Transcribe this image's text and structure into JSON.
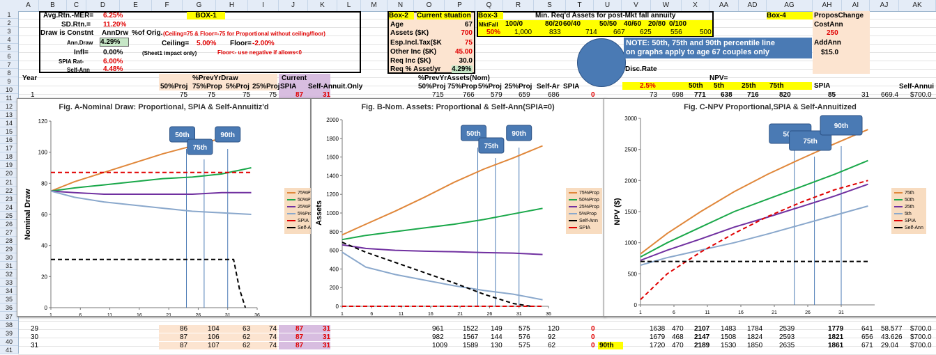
{
  "columns": [
    "A",
    "B",
    "C",
    "D",
    "E",
    "F",
    "G",
    "H",
    "I",
    "J",
    "K",
    "L",
    "M",
    "N",
    "O",
    "P",
    "Q",
    "R",
    "S",
    "T",
    "U",
    "V",
    "W",
    "X",
    "AA",
    "AD",
    "AG",
    "AH",
    "AI",
    "AJ",
    "AK"
  ],
  "rows": [
    "1",
    "2",
    "3",
    "4",
    "5",
    "6",
    "7",
    "8",
    "9",
    "10",
    "11",
    "12",
    "13",
    "14",
    "15",
    "16",
    "17",
    "18",
    "19",
    "20",
    "21",
    "22",
    "23",
    "24",
    "25",
    "26",
    "27",
    "28",
    "29",
    "30",
    "31",
    "32",
    "33",
    "34",
    "35",
    "36",
    "37",
    "38",
    "39",
    "40",
    "41"
  ],
  "box1": {
    "avg_label": "Avg.Rtn.-MER=",
    "avg_val": "6.25%",
    "box_label": "BOX-1",
    "sd_label": "SD.Rtn.=",
    "sd_val": "11.20%",
    "draw_label": "Draw is Constnt",
    "draw_mode": "AnnDrw",
    "pct_label": "%of Orig.",
    "ceiling_note": "(Ceiling=75 & Floor=-75 for Proportional without ceiling/floor)",
    "anndraw_label": "Ann.Draw",
    "anndraw_val": "4.29%",
    "ceiling_label": "Ceiling=",
    "ceiling_val": "5.00%",
    "floor_label": "Floor=",
    "floor_val": "-2.00%",
    "infl_label": "Infl=",
    "infl_val": "0.00%",
    "sheet_note": "(Sheet1 impact only)",
    "floor_note": "Floor<- use negative if allows<0",
    "spia_label": "SPIA Rat-",
    "spia_val": "6.00%",
    "self_label": "Self-Ann",
    "self_val": "4.48%"
  },
  "box2": {
    "title": "Box-2",
    "sub": "Current stuation",
    "age_label": "Age",
    "age_val": "67",
    "assets_label": "Assets ($K)",
    "assets_val": "700",
    "exp_label": "Esp.Incl.Tax($K",
    "exp_val": "75",
    "other_label": "Other Inc ($K)",
    "other_val": "45.00",
    "req_label": "Req Inc ($K)",
    "req_val": "30.0",
    "reqpct_label": "Req % Asset/yr",
    "reqpct_val": "4.29%"
  },
  "box3": {
    "title": "Box-3",
    "heading": "Min. Req'd Assets for post-Mkt fall annuity",
    "headers": [
      "MktFall",
      "100/0",
      "80/20",
      "60/40",
      "50/50",
      "40/60",
      "20/80",
      "0/100"
    ],
    "pct": "50%",
    "values": [
      "1,000",
      "833",
      "714",
      "667",
      "625",
      "556",
      "500"
    ]
  },
  "box4": {
    "title": "Box-4",
    "propos": "ProposChange",
    "costann": "CostAnn",
    "cost_val": "250",
    "addann": "AddAnn",
    "addann_val": "$15.0"
  },
  "note": {
    "line1": "NOTE: 50th, 75th and 90th percentile line",
    "line2": "on graphs apply to age 67 couples only"
  },
  "disc": {
    "label": "Disc.Rate",
    "npv_label": "NPV=",
    "rate": "2.5%",
    "p50": "50th",
    "p5": "5th",
    "p25": "25th",
    "p75": "75th",
    "spia": "SPIA"
  },
  "row8": {
    "year": "Year",
    "prev": "%PrevYrDraw",
    "current": "Current"
  },
  "row9": {
    "h1": "50%Proj",
    "h2": "75%Prop",
    "h3": "5%Proj",
    "h4": "25%Proj",
    "spia": "SPIA",
    "self": "Self-Annuit.Only",
    "assets": "%PrevYrAssets(Nom)",
    "a1": "50%Proj",
    "a2": "75%Prop",
    "a3": "5%Proj",
    "a4": "25%Proj",
    "a5": "Self-Ar",
    "a6": "SPIA",
    "selfann": "Self-Annui"
  },
  "row10": [
    "1",
    "75",
    "75",
    "75",
    "75",
    "87",
    "31",
    "715",
    "766",
    "579",
    "659",
    "686",
    "0",
    "73",
    "698",
    "771",
    "638",
    "716",
    "820",
    "85",
    "31",
    "669.4",
    "$700.0"
  ],
  "bottom_rows": [
    {
      "year": "29",
      "c": [
        "86",
        "104",
        "63",
        "74",
        "87",
        "31"
      ],
      "d": [
        "961",
        "1522",
        "149",
        "575",
        "120",
        "0"
      ],
      "p": "",
      "e": [
        "1638",
        "470",
        "2107",
        "1483",
        "1784",
        "2539",
        "1779",
        "641",
        "58.577",
        "$700.0"
      ]
    },
    {
      "year": "30",
      "c": [
        "87",
        "106",
        "62",
        "74",
        "87",
        "31"
      ],
      "d": [
        "982",
        "1567",
        "144",
        "576",
        "92",
        "0"
      ],
      "p": "",
      "e": [
        "1679",
        "468",
        "2147",
        "1508",
        "1824",
        "2593",
        "1821",
        "656",
        "43.626",
        "$700.0"
      ]
    },
    {
      "year": "31",
      "c": [
        "87",
        "107",
        "62",
        "74",
        "87",
        "31"
      ],
      "d": [
        "1009",
        "1589",
        "130",
        "575",
        "62",
        "0"
      ],
      "p": "90th",
      "e": [
        "1720",
        "470",
        "2189",
        "1530",
        "1850",
        "2635",
        "1861",
        "671",
        "29.04",
        "$700.0"
      ]
    }
  ],
  "colors": {
    "p75": "#e0873a",
    "p50": "#1aa84a",
    "p25": "#7030a0",
    "p5": "#8aa8cc",
    "spia": "#e00000",
    "selfann": "#000000",
    "pill": "#4a7ab4",
    "legend_bg": "#f8dcc0",
    "yellow": "#ffff00",
    "peach": "#fce4d0"
  },
  "chart_data": [
    {
      "type": "line",
      "title": "Fig. A-Nominal Draw: Proportional, SPIA & Self-Annuitiz'd",
      "ylabel": "Nominal Draw",
      "xlabel": "",
      "ylim": [
        0,
        120
      ],
      "xlim": [
        1,
        36
      ],
      "yticks": [
        "0",
        "20",
        "40",
        "60",
        "80",
        "100",
        "120"
      ],
      "xticks": [
        "1",
        "6",
        "11",
        "16",
        "21",
        "26",
        "31",
        "36"
      ],
      "percentile_labels": [
        "50th",
        "75th",
        "90th"
      ],
      "percentile_x": [
        24,
        27,
        31
      ],
      "series": [
        {
          "name": "75%Prop",
          "color": "#e0873a",
          "dash": false,
          "x": [
            1,
            5,
            10,
            15,
            20,
            25,
            30,
            33
          ],
          "y": [
            75,
            81,
            87,
            93,
            99,
            104,
            109,
            113
          ]
        },
        {
          "name": "50%Prop",
          "color": "#1aa84a",
          "dash": false,
          "x": [
            1,
            5,
            10,
            15,
            20,
            25,
            30,
            35
          ],
          "y": [
            75,
            77,
            79,
            81,
            83,
            84,
            86,
            90
          ]
        },
        {
          "name": "25%Prop",
          "color": "#7030a0",
          "dash": false,
          "x": [
            1,
            5,
            10,
            15,
            20,
            25,
            30,
            35
          ],
          "y": [
            75,
            74,
            73,
            73,
            73,
            73,
            74,
            74
          ]
        },
        {
          "name": "5%Prop",
          "color": "#8aa8cc",
          "dash": false,
          "x": [
            1,
            5,
            10,
            15,
            20,
            25,
            30,
            35
          ],
          "y": [
            75,
            71,
            68,
            66,
            64,
            62,
            61,
            60
          ]
        },
        {
          "name": "SPIA",
          "color": "#e00000",
          "dash": true,
          "x": [
            1,
            35
          ],
          "y": [
            87,
            87
          ]
        },
        {
          "name": "Self-Ann",
          "color": "#000000",
          "dash": true,
          "x": [
            1,
            32,
            33,
            34
          ],
          "y": [
            31,
            31,
            12,
            0
          ]
        }
      ]
    },
    {
      "type": "line",
      "title": "Fig. B-Nom. Assets: Proportional  & Self-Ann(SPIA=0)",
      "ylabel": "Assets",
      "xlabel": "",
      "ylim": [
        0,
        2000
      ],
      "xlim": [
        1,
        36
      ],
      "yticks": [
        "0",
        "200",
        "400",
        "600",
        "800",
        "1000",
        "1200",
        "1400",
        "1600",
        "1800",
        "2000"
      ],
      "xticks": [
        "1",
        "6",
        "11",
        "16",
        "21",
        "26",
        "31",
        "36"
      ],
      "percentile_labels": [
        "50th",
        "75th",
        "90th"
      ],
      "percentile_x": [
        24,
        27,
        31
      ],
      "series": [
        {
          "name": "75%Prop",
          "color": "#e0873a",
          "dash": false,
          "x": [
            1,
            5,
            10,
            15,
            20,
            25,
            30,
            35
          ],
          "y": [
            766,
            880,
            1020,
            1170,
            1330,
            1470,
            1590,
            1720
          ]
        },
        {
          "name": "50%Prop",
          "color": "#1aa84a",
          "dash": false,
          "x": [
            1,
            5,
            10,
            15,
            20,
            25,
            30,
            35
          ],
          "y": [
            715,
            760,
            800,
            840,
            880,
            930,
            990,
            1050
          ]
        },
        {
          "name": "25%Prop",
          "color": "#7030a0",
          "dash": false,
          "x": [
            1,
            5,
            10,
            15,
            20,
            25,
            30,
            35
          ],
          "y": [
            659,
            620,
            600,
            590,
            585,
            575,
            570,
            555
          ]
        },
        {
          "name": "5%Prop",
          "color": "#8aa8cc",
          "dash": false,
          "x": [
            1,
            5,
            10,
            15,
            20,
            25,
            30,
            35
          ],
          "y": [
            579,
            420,
            340,
            280,
            220,
            170,
            130,
            70
          ]
        },
        {
          "name": "Self-Ann",
          "color": "#000000",
          "dash": true,
          "x": [
            1,
            5,
            10,
            15,
            20,
            25,
            30,
            33
          ],
          "y": [
            686,
            580,
            470,
            360,
            250,
            130,
            30,
            0
          ]
        },
        {
          "name": "SPIA",
          "color": "#e00000",
          "dash": true,
          "x": [
            1,
            35
          ],
          "y": [
            0,
            0
          ]
        }
      ]
    },
    {
      "type": "line",
      "title": "Fig. C-NPV Proportional,SPIA & Self-Annuitized",
      "ylabel": "NPV ($)",
      "xlabel": "",
      "ylim": [
        0,
        3000
      ],
      "xlim": [
        1,
        36
      ],
      "yticks": [
        "0",
        "500",
        "1000",
        "1500",
        "2000",
        "2500",
        "3000"
      ],
      "xticks": [
        "1",
        "6",
        "11",
        "16",
        "21",
        "26",
        "31"
      ],
      "percentile_labels": [
        "50th",
        "75th",
        "90th"
      ],
      "percentile_x": [
        24,
        27,
        31
      ],
      "series": [
        {
          "name": "75th",
          "color": "#e0873a",
          "dash": false,
          "x": [
            1,
            5,
            10,
            15,
            20,
            25,
            30,
            35
          ],
          "y": [
            820,
            1150,
            1500,
            1820,
            2100,
            2350,
            2590,
            2820
          ]
        },
        {
          "name": "50th",
          "color": "#1aa84a",
          "dash": false,
          "x": [
            1,
            5,
            10,
            15,
            20,
            25,
            30,
            35
          ],
          "y": [
            771,
            1000,
            1250,
            1500,
            1700,
            1900,
            2100,
            2320
          ]
        },
        {
          "name": "25th",
          "color": "#7030a0",
          "dash": false,
          "x": [
            1,
            5,
            10,
            15,
            20,
            25,
            30,
            35
          ],
          "y": [
            716,
            880,
            1060,
            1250,
            1410,
            1580,
            1750,
            1940
          ]
        },
        {
          "name": "5th",
          "color": "#8aa8cc",
          "dash": false,
          "x": [
            1,
            5,
            10,
            15,
            20,
            25,
            30,
            35
          ],
          "y": [
            638,
            760,
            880,
            1000,
            1140,
            1290,
            1440,
            1590
          ]
        },
        {
          "name": "SPIA",
          "color": "#e00000",
          "dash": true,
          "x": [
            1,
            5,
            10,
            15,
            20,
            25,
            30,
            35
          ],
          "y": [
            85,
            500,
            850,
            1150,
            1420,
            1650,
            1850,
            2000
          ]
        },
        {
          "name": "Self-Ann",
          "color": "#000000",
          "dash": true,
          "x": [
            1,
            35
          ],
          "y": [
            698,
            698
          ]
        }
      ]
    }
  ]
}
